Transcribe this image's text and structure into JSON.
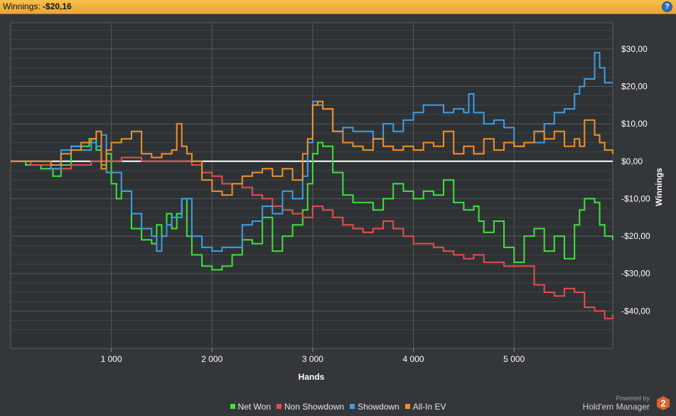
{
  "header": {
    "label": "Winnings:",
    "value": "-$20,16",
    "help": "?"
  },
  "brand": {
    "powered_by": "Powered by",
    "name": "Hold'em Manager",
    "logo_number": "2"
  },
  "colors": {
    "net_won": "#3ee23a",
    "non_showdown": "#e84c4c",
    "showdown": "#3a9ee6",
    "allin_ev": "#f0902a",
    "zero_line": "#ffffff"
  },
  "chart_data": {
    "type": "line",
    "xlabel": "Hands",
    "ylabel": "Winnings",
    "xlim": [
      0,
      5980
    ],
    "ylim": [
      -50,
      37
    ],
    "x_ticks": [
      1000,
      2000,
      3000,
      4000,
      5000
    ],
    "x_tick_labels": [
      "1 000",
      "2 000",
      "3 000",
      "4 000",
      "5 000"
    ],
    "y_ticks": [
      30,
      20,
      10,
      0,
      -10,
      -20,
      -30,
      -40
    ],
    "y_tick_labels": [
      "$30,00",
      "$20,00",
      "$10,00",
      "$0,00",
      "-$10,00",
      "-$20,00",
      "-$30,00",
      "-$40,00"
    ],
    "grid": true,
    "legend_position": "bottom",
    "series": [
      {
        "name": "Net Won",
        "color": "#3ee23a",
        "x": [
          0,
          150,
          300,
          420,
          500,
          600,
          700,
          780,
          850,
          900,
          950,
          1000,
          1050,
          1100,
          1200,
          1300,
          1400,
          1450,
          1500,
          1550,
          1600,
          1650,
          1700,
          1750,
          1800,
          1900,
          2000,
          2100,
          2200,
          2300,
          2400,
          2500,
          2600,
          2700,
          2800,
          2900,
          2950,
          3000,
          3050,
          3100,
          3200,
          3300,
          3400,
          3500,
          3600,
          3700,
          3800,
          3900,
          4000,
          4100,
          4200,
          4300,
          4400,
          4500,
          4600,
          4650,
          4700,
          4800,
          4900,
          5000,
          5100,
          5200,
          5300,
          5400,
          5500,
          5600,
          5650,
          5700,
          5800,
          5850,
          5900,
          5980
        ],
        "y": [
          0,
          -1,
          -2,
          -4,
          -1,
          4,
          4,
          6,
          3,
          -1,
          2,
          -6,
          -10,
          -8,
          -18,
          -21,
          -22,
          -17,
          -20,
          -14,
          -18,
          -14,
          -10,
          -20,
          -25,
          -28,
          -29,
          -28,
          -25,
          -21,
          -22,
          -15,
          -24,
          -20,
          -17,
          -13,
          -6,
          2,
          5,
          4,
          -3,
          -9,
          -11,
          -11,
          -13,
          -10,
          -6,
          -8,
          -10,
          -8,
          -9,
          -5,
          -11,
          -13,
          -12,
          -16,
          -19,
          -16,
          -23,
          -27,
          -20,
          -18,
          -24,
          -20,
          -26,
          -17,
          -13,
          -10,
          -11,
          -17,
          -20,
          -21
        ]
      },
      {
        "name": "Non Showdown",
        "color": "#e84c4c",
        "x": [
          0,
          200,
          400,
          600,
          800,
          1000,
          1100,
          1200,
          1300,
          1400,
          1500,
          1600,
          1700,
          1800,
          1900,
          2000,
          2100,
          2200,
          2300,
          2400,
          2500,
          2600,
          2700,
          2800,
          2900,
          3000,
          3100,
          3200,
          3300,
          3400,
          3500,
          3600,
          3700,
          3800,
          3900,
          4000,
          4100,
          4200,
          4300,
          4400,
          4500,
          4600,
          4700,
          4800,
          4900,
          5000,
          5100,
          5200,
          5300,
          5400,
          5500,
          5600,
          5700,
          5800,
          5900,
          5980
        ],
        "y": [
          0,
          -1,
          -2,
          -1,
          0,
          0,
          1,
          1,
          0,
          0,
          0,
          0,
          0,
          -1,
          -3,
          -4,
          -6,
          -6,
          -7,
          -9,
          -10,
          -12,
          -13,
          -14,
          -15,
          -12,
          -13,
          -15,
          -17,
          -18,
          -19,
          -18,
          -16,
          -18,
          -20,
          -22,
          -22,
          -23,
          -24,
          -25,
          -26,
          -25,
          -27,
          -27,
          -28,
          -28,
          -28,
          -33,
          -35,
          -36,
          -34,
          -35,
          -39,
          -40,
          -42,
          -41
        ]
      },
      {
        "name": "Showdown",
        "color": "#3a9ee6",
        "x": [
          0,
          200,
          400,
          500,
          600,
          700,
          800,
          850,
          900,
          950,
          1000,
          1100,
          1200,
          1300,
          1400,
          1450,
          1500,
          1550,
          1600,
          1700,
          1800,
          1900,
          2000,
          2100,
          2200,
          2300,
          2400,
          2500,
          2600,
          2700,
          2800,
          2900,
          2950,
          3000,
          3050,
          3100,
          3200,
          3300,
          3400,
          3500,
          3600,
          3700,
          3800,
          3900,
          4000,
          4100,
          4200,
          4300,
          4400,
          4500,
          4550,
          4600,
          4700,
          4800,
          4900,
          5000,
          5100,
          5200,
          5300,
          5400,
          5500,
          5600,
          5650,
          5700,
          5800,
          5850,
          5900,
          5980
        ],
        "y": [
          0,
          0,
          -2,
          3,
          4,
          3,
          5,
          4,
          7,
          -3,
          -3,
          -8,
          -14,
          -18,
          -20,
          -24,
          -20,
          -17,
          -15,
          -10,
          -20,
          -23,
          -24,
          -23,
          -23,
          -17,
          -16,
          -12,
          -14,
          -8,
          -10,
          -4,
          5,
          16,
          15,
          14,
          8,
          9,
          8,
          8,
          6,
          10,
          8,
          11,
          13,
          15,
          15,
          13,
          14,
          13,
          18,
          13,
          10,
          11,
          9,
          4,
          5,
          5,
          10,
          13,
          14,
          18,
          20,
          22,
          29,
          25,
          21,
          21
        ]
      },
      {
        "name": "All-In EV",
        "color": "#f0902a",
        "x": [
          0,
          200,
          400,
          500,
          600,
          700,
          800,
          850,
          900,
          950,
          1000,
          1100,
          1200,
          1300,
          1400,
          1500,
          1600,
          1650,
          1700,
          1750,
          1800,
          1900,
          2000,
          2100,
          2200,
          2300,
          2400,
          2500,
          2600,
          2700,
          2800,
          2900,
          2950,
          3000,
          3050,
          3100,
          3200,
          3300,
          3400,
          3500,
          3600,
          3700,
          3800,
          3900,
          4000,
          4100,
          4200,
          4300,
          4400,
          4500,
          4600,
          4700,
          4800,
          4900,
          5000,
          5100,
          5200,
          5300,
          5400,
          5500,
          5600,
          5650,
          5700,
          5800,
          5850,
          5900,
          5980
        ],
        "y": [
          0,
          0,
          -1,
          2,
          3,
          5,
          6,
          8,
          -2,
          3,
          5,
          6,
          8,
          2,
          1,
          2,
          3,
          10,
          4,
          2,
          0,
          -5,
          -8,
          -9,
          -6,
          -4,
          -3,
          -2,
          -4,
          -2,
          -5,
          2,
          6,
          15,
          16,
          14,
          8,
          5,
          4,
          3,
          6,
          4,
          3,
          4,
          3,
          5,
          4,
          8,
          2,
          4,
          2,
          6,
          3,
          5,
          4,
          5,
          8,
          6,
          8,
          4,
          6,
          4,
          11,
          7,
          5,
          3,
          2
        ]
      }
    ]
  }
}
